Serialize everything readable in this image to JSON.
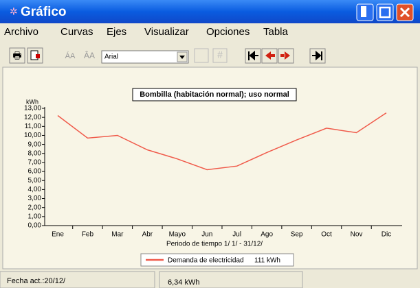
{
  "window": {
    "title": "Gráfico"
  },
  "menu": [
    "Archivo",
    "Curvas",
    "Ejes",
    "Visualizar",
    "Opciones",
    "Tabla"
  ],
  "toolbar": {
    "font": "Arial"
  },
  "chart_data": {
    "type": "line",
    "title": "Bombilla (habitación normal); uso normal",
    "y_unit": "kWh",
    "x_label": "Periodo de tiempo 1/ 1/ - 31/12/",
    "categories": [
      "Ene",
      "Feb",
      "Mar",
      "Abr",
      "Mayo",
      "Jun",
      "Jul",
      "Ago",
      "Sep",
      "Oct",
      "Nov",
      "Dic"
    ],
    "series": [
      {
        "name": "Demanda de electricidad",
        "color": "#f05a4a",
        "values": [
          12.2,
          9.7,
          10.0,
          8.4,
          7.4,
          6.2,
          6.6,
          8.1,
          9.5,
          10.8,
          10.3,
          12.5
        ]
      }
    ],
    "legend_note": "111  kWh",
    "ylim": [
      0,
      13
    ],
    "yticks": [
      {
        "value": 0,
        "label": "0,00"
      },
      {
        "value": 1,
        "label": "1,00"
      },
      {
        "value": 2,
        "label": "2,00"
      },
      {
        "value": 3,
        "label": "3,00"
      },
      {
        "value": 4,
        "label": "4,00"
      },
      {
        "value": 5,
        "label": "5,00"
      },
      {
        "value": 6,
        "label": "6,00"
      },
      {
        "value": 7,
        "label": "7,00"
      },
      {
        "value": 8,
        "label": "8,00"
      },
      {
        "value": 9,
        "label": "9,00"
      },
      {
        "value": 10,
        "label": "10,00"
      },
      {
        "value": 11,
        "label": "11,00"
      },
      {
        "value": 12,
        "label": "12,00"
      },
      {
        "value": 13,
        "label": "13,00"
      }
    ]
  },
  "status": [
    "Fecha act.:20/12/",
    "6,34 kWh"
  ]
}
